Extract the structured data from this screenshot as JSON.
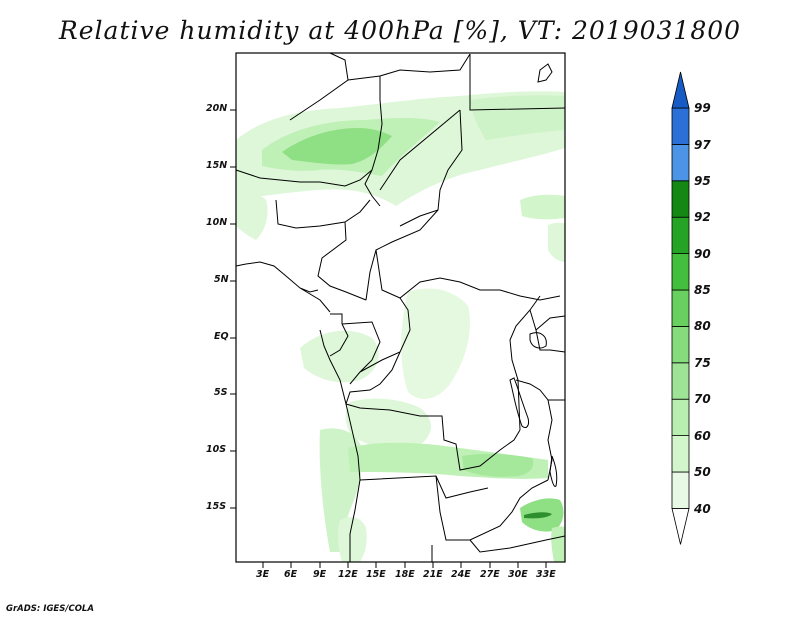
{
  "title": "Relative humidity at 400hPa [%], VT: 2019031800",
  "footer": "GrADS: IGES/COLA",
  "map": {
    "lat_labels": [
      "20N",
      "15N",
      "10N",
      "5N",
      "EQ",
      "5S",
      "10S",
      "15S"
    ],
    "lon_labels": [
      "3E",
      "6E",
      "9E",
      "12E",
      "15E",
      "18E",
      "21E",
      "24E",
      "27E",
      "30E",
      "33E"
    ]
  },
  "colorbar": {
    "levels": [
      "40",
      "50",
      "60",
      "70",
      "75",
      "80",
      "85",
      "90",
      "92",
      "95",
      "97",
      "99"
    ],
    "colors": [
      "#ffffff",
      "#e8fae5",
      "#d2f5cb",
      "#b8efb0",
      "#9fe496",
      "#86dc7c",
      "#67d05e",
      "#43bf3d",
      "#25a325",
      "#138913",
      "#4b94e6",
      "#2a70d6",
      "#165cc4"
    ]
  },
  "colors": {
    "green_light": "#ddf7d8",
    "green_mid": "#bff0b6",
    "green_strong": "#8fdf84",
    "green_dark": "#2e8f2e",
    "border": "#000000"
  }
}
